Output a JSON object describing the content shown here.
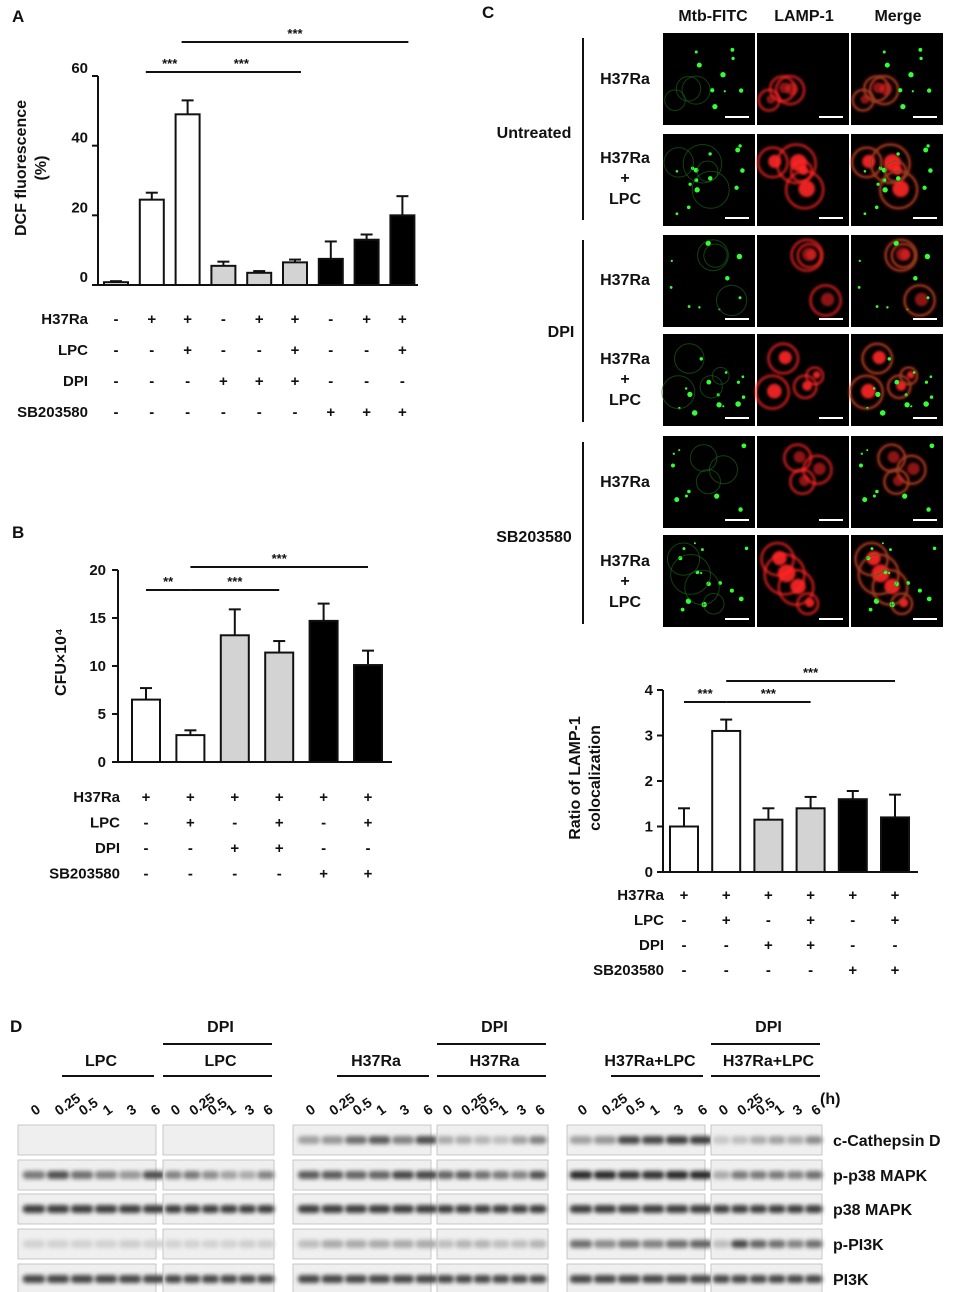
{
  "panels": {
    "A": {
      "label": "A",
      "chart_data": {
        "type": "bar",
        "ylabel": [
          "DCF fluorescence",
          "(%)"
        ],
        "ylim": [
          0,
          60
        ],
        "yticks": [
          "0",
          "20",
          "40",
          "60"
        ],
        "values": [
          0.8,
          24.5,
          49,
          5.5,
          3.5,
          6.5,
          7.5,
          13,
          20
        ],
        "errors": [
          0.3,
          2,
          4,
          1.2,
          0.5,
          0.8,
          5,
          1.5,
          5.5
        ],
        "fills": [
          "#ffffff",
          "#ffffff",
          "#ffffff",
          "#d3d3d3",
          "#d3d3d3",
          "#d3d3d3",
          "#000000",
          "#000000",
          "#000000"
        ],
        "conditions": [
          {
            "name": "H37Ra",
            "values": [
              "-",
              "+",
              "+",
              "-",
              "+",
              "+",
              "-",
              "+",
              "+"
            ]
          },
          {
            "name": "LPC",
            "values": [
              "-",
              "-",
              "+",
              "-",
              "-",
              "+",
              "-",
              "-",
              "+"
            ]
          },
          {
            "name": "DPI",
            "values": [
              "-",
              "-",
              "-",
              "+",
              "+",
              "+",
              "-",
              "-",
              "-"
            ]
          },
          {
            "name": "SB203580",
            "values": [
              "-",
              "-",
              "-",
              "-",
              "-",
              "-",
              "+",
              "+",
              "+"
            ]
          }
        ],
        "significance": [
          {
            "from": 1,
            "to": 2,
            "text": "***",
            "level": 0
          },
          {
            "from": 2,
            "to": 5,
            "text": "***",
            "level": 0
          },
          {
            "from": 2,
            "to": 8,
            "text": "***",
            "level": 1
          }
        ]
      }
    },
    "B": {
      "label": "B",
      "chart_data": {
        "type": "bar",
        "ylabel": "CFU×10⁴",
        "ylim": [
          0,
          20
        ],
        "yticks": [
          "0",
          "5",
          "10",
          "15",
          "20"
        ],
        "values": [
          6.5,
          2.8,
          13.2,
          11.4,
          14.7,
          10.1
        ],
        "errors": [
          1.2,
          0.5,
          2.7,
          1.2,
          1.8,
          1.5
        ],
        "fills": [
          "#ffffff",
          "#ffffff",
          "#d3d3d3",
          "#d3d3d3",
          "#000000",
          "#000000"
        ],
        "conditions": [
          {
            "name": "H37Ra",
            "values": [
              "+",
              "+",
              "+",
              "+",
              "+",
              "+"
            ]
          },
          {
            "name": "LPC",
            "values": [
              "-",
              "+",
              "-",
              "+",
              "-",
              "+"
            ]
          },
          {
            "name": "DPI",
            "values": [
              "-",
              "-",
              "+",
              "+",
              "-",
              "-"
            ]
          },
          {
            "name": "SB203580",
            "values": [
              "-",
              "-",
              "-",
              "-",
              "+",
              "+"
            ]
          }
        ],
        "significance": [
          {
            "from": 0,
            "to": 1,
            "text": "**",
            "level": 0
          },
          {
            "from": 1,
            "to": 3,
            "text": "***",
            "level": 0
          },
          {
            "from": 1,
            "to": 5,
            "text": "***",
            "level": 1
          }
        ]
      }
    },
    "C": {
      "label": "C",
      "micro_headers": [
        {
          "text": "Mtb-FITC",
          "color": "#22cc22"
        },
        {
          "text": "LAMP-1",
          "color": "#ff2222"
        },
        {
          "text": "Merge",
          "color": "#111111"
        }
      ],
      "groups": [
        {
          "name": "Untreated",
          "rows": [
            [
              "H37Ra"
            ],
            [
              "H37Ra",
              "+",
              "LPC"
            ]
          ]
        },
        {
          "name": "DPI",
          "rows": [
            [
              "H37Ra"
            ],
            [
              "H37Ra",
              "+",
              "LPC"
            ]
          ]
        },
        {
          "name": "SB203580",
          "rows": [
            [
              "H37Ra"
            ],
            [
              "H37Ra",
              "+",
              "LPC"
            ]
          ]
        }
      ],
      "chart_data": {
        "type": "bar",
        "ylabel": [
          "Ratio of LAMP-1",
          "colocalization"
        ],
        "ylim": [
          0,
          4
        ],
        "yticks": [
          "0",
          "1",
          "2",
          "3",
          "4"
        ],
        "values": [
          1.0,
          3.1,
          1.15,
          1.4,
          1.6,
          1.2
        ],
        "errors": [
          0.4,
          0.25,
          0.25,
          0.25,
          0.18,
          0.5
        ],
        "fills": [
          "#ffffff",
          "#ffffff",
          "#d3d3d3",
          "#d3d3d3",
          "#000000",
          "#000000"
        ],
        "conditions": [
          {
            "name": "H37Ra",
            "values": [
              "+",
              "+",
              "+",
              "+",
              "+",
              "+"
            ]
          },
          {
            "name": "LPC",
            "values": [
              "-",
              "+",
              "-",
              "+",
              "-",
              "+"
            ]
          },
          {
            "name": "DPI",
            "values": [
              "-",
              "-",
              "+",
              "+",
              "-",
              "-"
            ]
          },
          {
            "name": "SB203580",
            "values": [
              "-",
              "-",
              "-",
              "-",
              "+",
              "+"
            ]
          }
        ],
        "significance": [
          {
            "from": 0,
            "to": 1,
            "text": "***",
            "level": 0
          },
          {
            "from": 1,
            "to": 3,
            "text": "***",
            "level": 0
          },
          {
            "from": 1,
            "to": 5,
            "text": "***",
            "level": 1
          }
        ]
      }
    },
    "D": {
      "label": "D",
      "unit": "(h)",
      "groups": [
        {
          "top": "",
          "label": "LPC"
        },
        {
          "top": "DPI",
          "label": "LPC"
        },
        {
          "top": "",
          "label": "H37Ra"
        },
        {
          "top": "DPI",
          "label": "H37Ra"
        },
        {
          "top": "",
          "label": "H37Ra+LPC"
        },
        {
          "top": "DPI",
          "label": "H37Ra+LPC"
        }
      ],
      "timepoints": [
        "0",
        "0.25",
        "0.5",
        "1",
        "3",
        "6"
      ],
      "blots": [
        "c-Cathepsin  D",
        "p-p38 MAPK",
        "p38 MAPK",
        "p-PI3K",
        "PI3K"
      ],
      "band_intensity": [
        [
          [
            0.05,
            0.05,
            0.05,
            0.05,
            0.05,
            0.05
          ],
          [
            0.05,
            0.05,
            0.05,
            0.05,
            0.05,
            0.05
          ],
          [
            0.35,
            0.4,
            0.6,
            0.7,
            0.5,
            0.75
          ],
          [
            0.3,
            0.3,
            0.25,
            0.2,
            0.35,
            0.5
          ],
          [
            0.35,
            0.4,
            0.8,
            0.8,
            0.85,
            0.85
          ],
          [
            0.15,
            0.2,
            0.3,
            0.35,
            0.3,
            0.45
          ]
        ],
        [
          [
            0.55,
            0.75,
            0.6,
            0.5,
            0.4,
            0.75
          ],
          [
            0.5,
            0.55,
            0.45,
            0.35,
            0.3,
            0.5
          ],
          [
            0.7,
            0.7,
            0.65,
            0.65,
            0.8,
            0.8
          ],
          [
            0.65,
            0.7,
            0.6,
            0.55,
            0.5,
            0.75
          ],
          [
            0.95,
            0.95,
            0.9,
            0.9,
            0.95,
            0.95
          ],
          [
            0.3,
            0.55,
            0.55,
            0.55,
            0.5,
            0.6
          ]
        ],
        [
          [
            0.85,
            0.85,
            0.85,
            0.85,
            0.85,
            0.85
          ],
          [
            0.85,
            0.85,
            0.85,
            0.85,
            0.85,
            0.85
          ],
          [
            0.85,
            0.85,
            0.85,
            0.85,
            0.85,
            0.85
          ],
          [
            0.85,
            0.85,
            0.85,
            0.85,
            0.85,
            0.85
          ],
          [
            0.85,
            0.85,
            0.85,
            0.85,
            0.85,
            0.85
          ],
          [
            0.85,
            0.85,
            0.85,
            0.85,
            0.85,
            0.85
          ]
        ],
        [
          [
            0.1,
            0.1,
            0.1,
            0.1,
            0.12,
            0.1
          ],
          [
            0.1,
            0.1,
            0.1,
            0.1,
            0.12,
            0.12
          ],
          [
            0.2,
            0.3,
            0.3,
            0.3,
            0.3,
            0.3
          ],
          [
            0.2,
            0.25,
            0.25,
            0.2,
            0.2,
            0.25
          ],
          [
            0.6,
            0.45,
            0.55,
            0.5,
            0.6,
            0.65
          ],
          [
            0.2,
            0.8,
            0.65,
            0.6,
            0.5,
            0.6
          ]
        ],
        [
          [
            0.8,
            0.8,
            0.8,
            0.8,
            0.8,
            0.8
          ],
          [
            0.8,
            0.8,
            0.8,
            0.8,
            0.8,
            0.8
          ],
          [
            0.8,
            0.8,
            0.8,
            0.8,
            0.8,
            0.8
          ],
          [
            0.8,
            0.8,
            0.8,
            0.8,
            0.8,
            0.8
          ],
          [
            0.8,
            0.8,
            0.8,
            0.8,
            0.8,
            0.8
          ],
          [
            0.8,
            0.8,
            0.8,
            0.8,
            0.8,
            0.8
          ]
        ]
      ]
    }
  }
}
